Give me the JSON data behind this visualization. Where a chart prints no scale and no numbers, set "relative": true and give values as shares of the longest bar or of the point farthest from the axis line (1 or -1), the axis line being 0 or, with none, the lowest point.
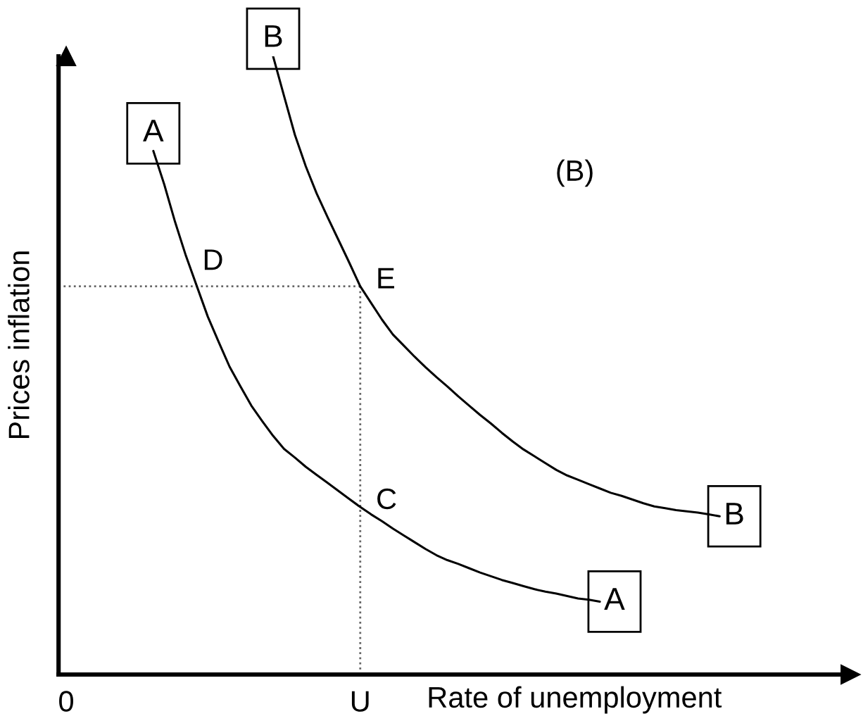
{
  "chart_data": {
    "type": "line",
    "relative": true,
    "xlabel": "Rate of unemployment",
    "ylabel": "Prices inflation",
    "categories": [
      "0",
      null,
      null,
      null,
      null,
      null,
      null,
      null,
      null,
      null,
      null,
      null,
      null,
      null,
      null,
      null,
      null,
      null,
      null,
      null,
      null,
      null,
      null,
      null,
      null,
      null,
      null,
      "U",
      null,
      null,
      null,
      null,
      null,
      null,
      null,
      null,
      null,
      null,
      null,
      null,
      null,
      null,
      null,
      null,
      null,
      null,
      null,
      null,
      null,
      null,
      null,
      null,
      null,
      null,
      null,
      null,
      null,
      null,
      null,
      null,
      null
    ],
    "tick_labels": "x",
    "grid": false,
    "legend": false,
    "line_style": "solid",
    "series": [
      {
        "name": "A",
        "color": "#000000",
        "values": [
          null,
          null,
          null,
          null,
          null,
          null,
          null,
          null,
          0.847,
          0.793,
          0.732,
          0.677,
          0.628,
          0.579,
          0.538,
          0.498,
          0.466,
          0.435,
          0.41,
          0.386,
          0.365,
          0.351,
          0.336,
          0.323,
          0.31,
          0.297,
          0.284,
          0.271,
          0.259,
          0.248,
          0.236,
          0.225,
          0.214,
          0.203,
          0.193,
          0.185,
          0.179,
          0.172,
          0.165,
          0.159,
          0.153,
          0.148,
          0.143,
          0.138,
          0.134,
          0.131,
          0.127,
          0.123,
          0.121,
          0.118,
          null,
          null,
          null,
          null,
          null,
          null,
          null,
          null,
          null,
          null,
          null
        ]
      },
      {
        "name": "B",
        "color": "#000000",
        "values": [
          null,
          null,
          null,
          null,
          null,
          null,
          null,
          null,
          null,
          null,
          null,
          null,
          null,
          null,
          null,
          null,
          null,
          null,
          null,
          1.0,
          0.936,
          0.873,
          0.822,
          0.778,
          0.74,
          0.703,
          0.666,
          0.628,
          0.601,
          0.574,
          0.55,
          0.532,
          0.514,
          0.497,
          0.481,
          0.466,
          0.45,
          0.435,
          0.42,
          0.406,
          0.391,
          0.377,
          0.364,
          0.353,
          0.342,
          0.331,
          0.322,
          0.315,
          0.308,
          0.301,
          0.294,
          0.289,
          0.283,
          0.277,
          0.272,
          0.269,
          0.266,
          0.264,
          0.262,
          0.259,
          0.256
        ]
      }
    ],
    "ref_lines": [
      {
        "axis": "y",
        "value": 0.628,
        "color": "#666666",
        "line_style": "dotted"
      },
      {
        "axis": "x",
        "value": "U",
        "color": "#666666",
        "line_style": "dotted"
      }
    ],
    "annotations": [
      "(B)",
      "D",
      {
        "text": "E",
        "x": "U",
        "y": 0.628
      },
      {
        "text": "C",
        "x": "U",
        "y": 0.271
      }
    ]
  }
}
